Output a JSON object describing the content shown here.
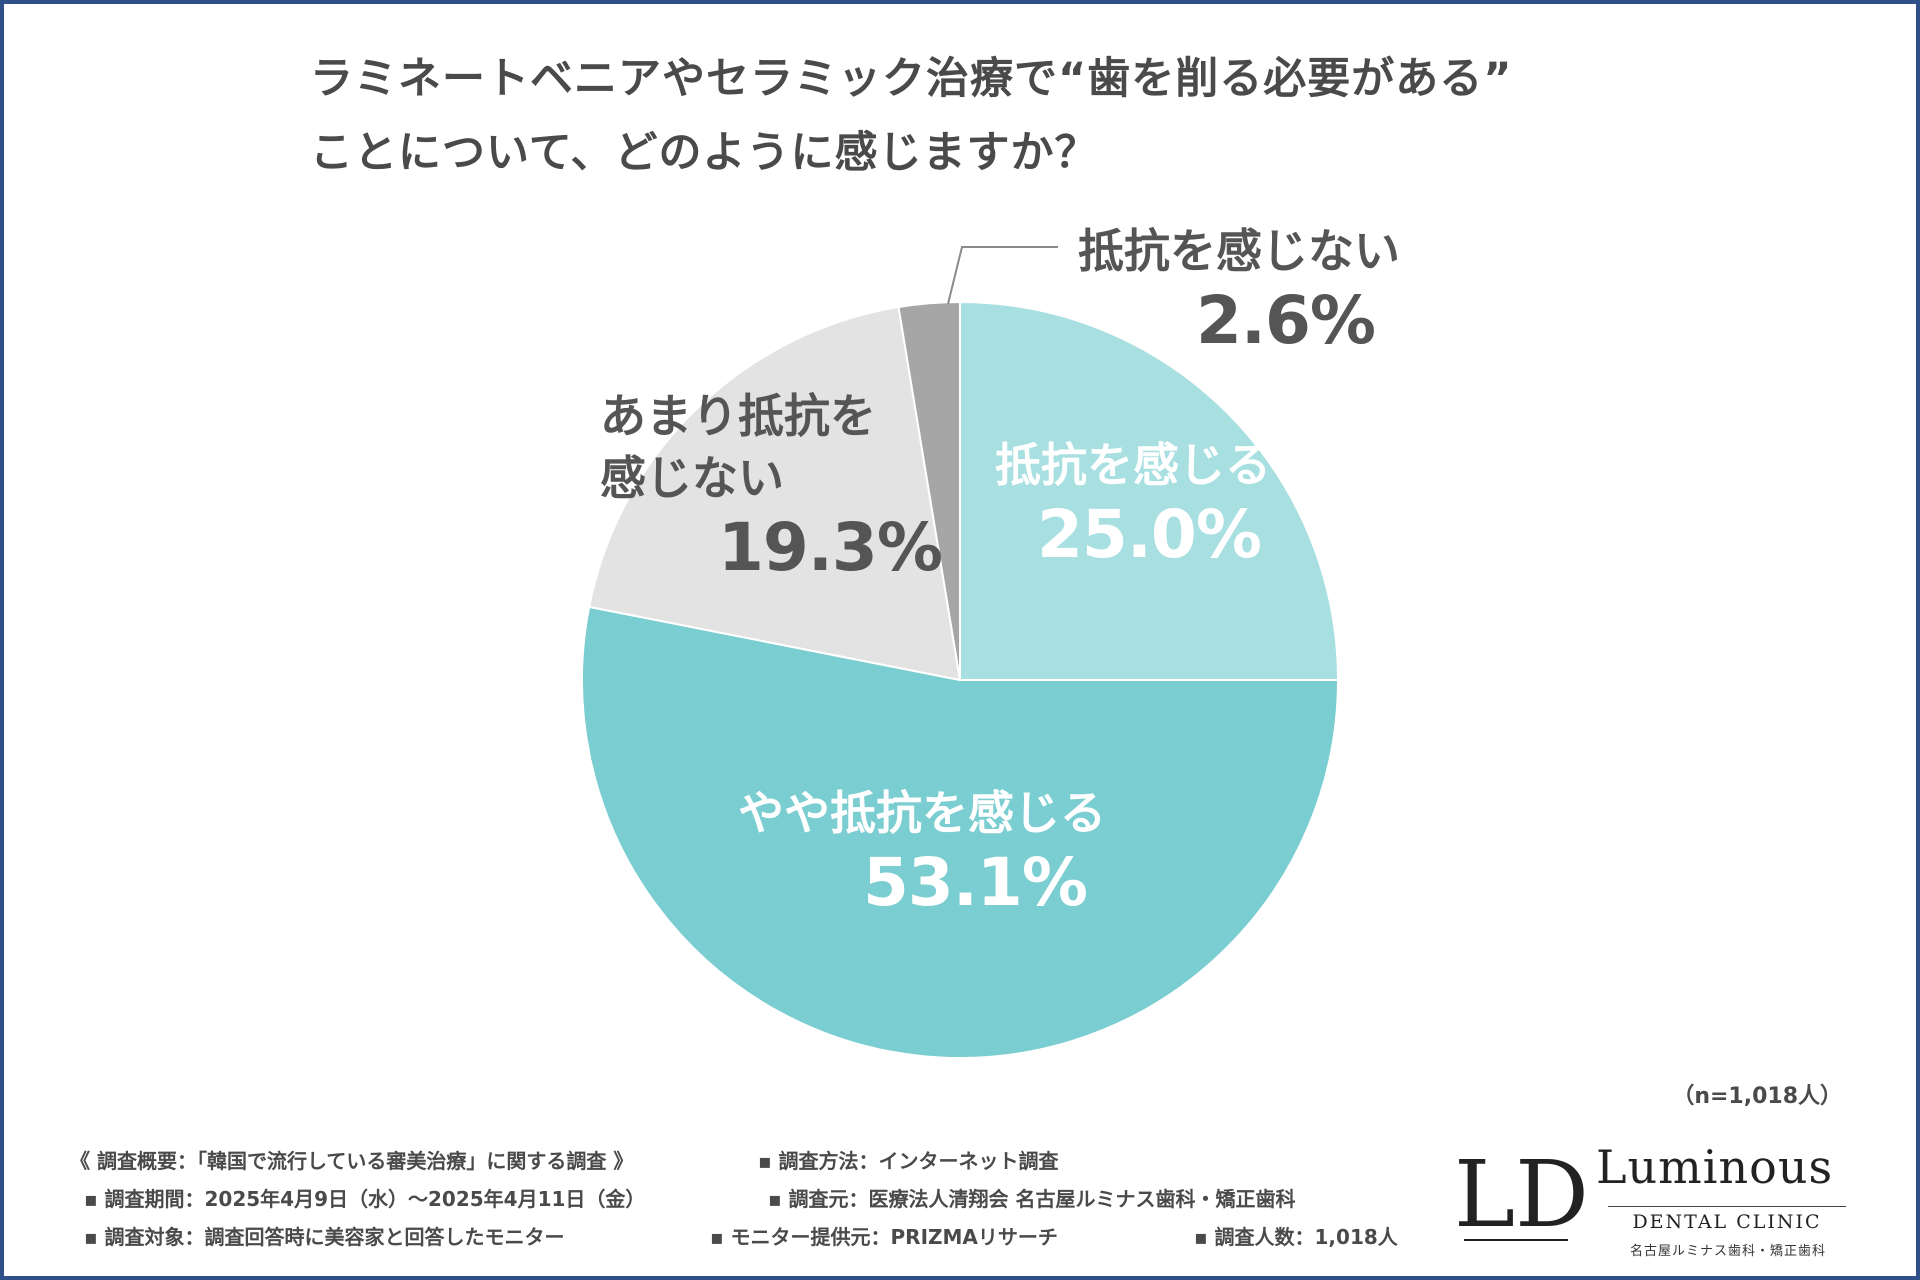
{
  "title_lines": [
    "ラミネートベニアやセラミック治療で“歯を削る必要がある”",
    "ことについて、どのように感じますか？"
  ],
  "chart_data": {
    "type": "pie",
    "title": "ラミネートベニアやセラミック治療で“歯を削る必要がある”ことについて、どのように感じますか？",
    "start": "12 o'clock, clockwise",
    "slices": [
      {
        "label": "抵抗を感じる",
        "value": 25.0,
        "display": "25.0%",
        "color": "#a8dfe1",
        "text_color": "#ffffff"
      },
      {
        "label": "やや抵抗を感じる",
        "value": 53.1,
        "display": "53.1%",
        "color": "#7acdd0",
        "text_color": "#ffffff"
      },
      {
        "label": "あまり抵抗を感じない",
        "value": 19.3,
        "display": "19.3%",
        "color": "#e3e3e3",
        "text_color": "#555555"
      },
      {
        "label": "抵抗を感じない",
        "value": 2.6,
        "display": "2.6%",
        "color": "#a6a6a6",
        "text_color": "#555555"
      }
    ]
  },
  "labels": {
    "s0_line1": "抵抗を感じる",
    "s0_pct": "25.0%",
    "s1_line1": "やや抵抗を感じる",
    "s1_pct": "53.1%",
    "s2_line1": "あまり抵抗を",
    "s2_line2": "感じない",
    "s2_pct": "19.3%",
    "s3_line1": "抵抗を感じない",
    "s3_pct": "2.6%"
  },
  "sample_note": "（n=1,018人）",
  "footer": {
    "r1a": "《 調査概要：「韓国で流行している審美治療」に関する調査 》",
    "r1b": "▪ 調査方法：インターネット調査",
    "r2a": "▪ 調査期間：2025年4月9日（水）～2025年4月11日（金）",
    "r2b": "▪ 調査元：医療法人清翔会 名古屋ルミナス歯科・矯正歯科",
    "r3a": "▪ 調査対象：調査回答時に美容家と回答したモニター",
    "r3b": "▪ モニター提供元：PRIZMAリサーチ",
    "r3c": "▪ 調査人数：1,018人"
  },
  "logo": {
    "mark": "LD",
    "name": "Luminous",
    "sub": "DENTAL CLINIC",
    "jp": "名古屋ルミナス歯科・矯正歯科"
  }
}
